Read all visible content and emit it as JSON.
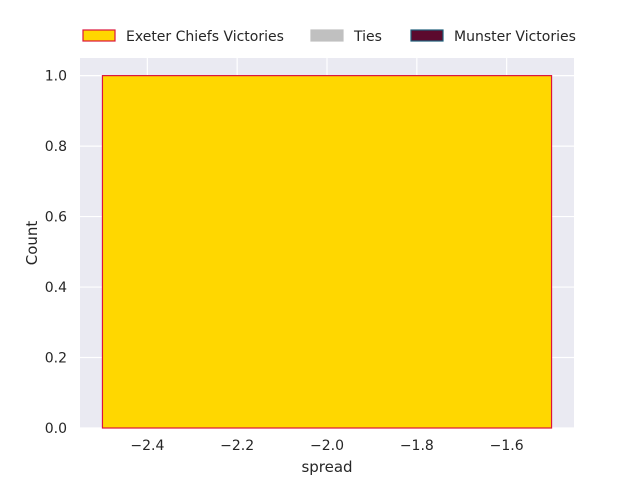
{
  "chart_data": {
    "type": "bar",
    "title": "",
    "xlabel": "spread",
    "ylabel": "Count",
    "xlim": [
      -2.55,
      -1.45
    ],
    "ylim": [
      0,
      1.05
    ],
    "xticks": [
      -2.4,
      -2.2,
      -2.0,
      -1.8,
      -1.6
    ],
    "xtick_labels": [
      "−2.4",
      "−2.2",
      "−2.0",
      "−1.8",
      "−1.6"
    ],
    "yticks": [
      0.0,
      0.2,
      0.4,
      0.6,
      0.8,
      1.0
    ],
    "ytick_labels": [
      "0.0",
      "0.2",
      "0.4",
      "0.6",
      "0.8",
      "1.0"
    ],
    "grid": true,
    "legend_position": "top",
    "series": [
      {
        "name": "Exeter Chiefs Victories",
        "fill": "#FFD700",
        "edge": "#DC143C",
        "bins": [
          {
            "x0": -2.5,
            "x1": -1.5,
            "count": 1
          }
        ]
      },
      {
        "name": "Ties",
        "fill": "#C0C0C0",
        "edge": "#C0C0C0",
        "bins": []
      },
      {
        "name": "Munster Victories",
        "fill": "#5C0A2E",
        "edge": "#1F5F7A",
        "bins": []
      }
    ],
    "background": "#EAEAF2",
    "grid_color": "#FFFFFF"
  }
}
